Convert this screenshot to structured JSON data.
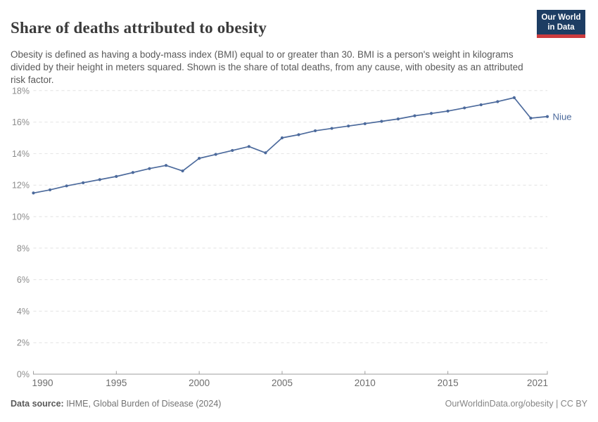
{
  "header": {
    "title": "Share of deaths attributed to obesity",
    "subtitle": "Obesity is defined as having a body-mass index (BMI) equal to or greater than 30. BMI is a person's weight in kilograms divided by their height in meters squared. Shown is the share of total deaths, from any cause, with obesity as an attributed risk factor.",
    "logo": {
      "line1": "Our World",
      "line2": "in Data"
    }
  },
  "chart_data": {
    "type": "line",
    "title": "Share of deaths attributed to obesity",
    "xlabel": "",
    "ylabel": "",
    "xlim": [
      1990,
      2021
    ],
    "ylim": [
      0,
      18
    ],
    "grid": "dashed horizontal",
    "legend_position": "end-of-line label",
    "x_ticks": [
      1990,
      1995,
      2000,
      2005,
      2010,
      2015,
      2021
    ],
    "y_ticks": [
      0,
      2,
      4,
      6,
      8,
      10,
      12,
      14,
      16,
      18
    ],
    "y_tick_suffix": "%",
    "series": [
      {
        "name": "Niue",
        "color": "#4c6a9c",
        "x": [
          1990,
          1991,
          1992,
          1993,
          1994,
          1995,
          1996,
          1997,
          1998,
          1999,
          2000,
          2001,
          2002,
          2003,
          2004,
          2005,
          2006,
          2007,
          2008,
          2009,
          2010,
          2011,
          2012,
          2013,
          2014,
          2015,
          2016,
          2017,
          2018,
          2019,
          2020,
          2021
        ],
        "values": [
          11.5,
          11.7,
          11.95,
          12.15,
          12.35,
          12.55,
          12.8,
          13.05,
          13.25,
          12.9,
          13.7,
          13.95,
          14.2,
          14.45,
          14.05,
          15.0,
          15.2,
          15.45,
          15.6,
          15.75,
          15.9,
          16.05,
          16.2,
          16.4,
          16.55,
          16.7,
          16.9,
          17.1,
          17.3,
          17.55,
          16.25,
          16.35
        ]
      }
    ],
    "end_label": "Niue"
  },
  "footer": {
    "datasource_label": "Data source:",
    "datasource_value": " IHME, Global Burden of Disease (2024)",
    "credit": "OurWorldinData.org/obesity | CC BY"
  },
  "colors": {
    "line": "#4c6a9c",
    "gridline": "#e2e2e2",
    "axis": "#9e9e9e",
    "y_tick_label": "#8d8d8d",
    "x_tick_label": "#6d6d6d",
    "logo_bg": "#1d3d63",
    "logo_stripe": "#cc3b3e"
  }
}
